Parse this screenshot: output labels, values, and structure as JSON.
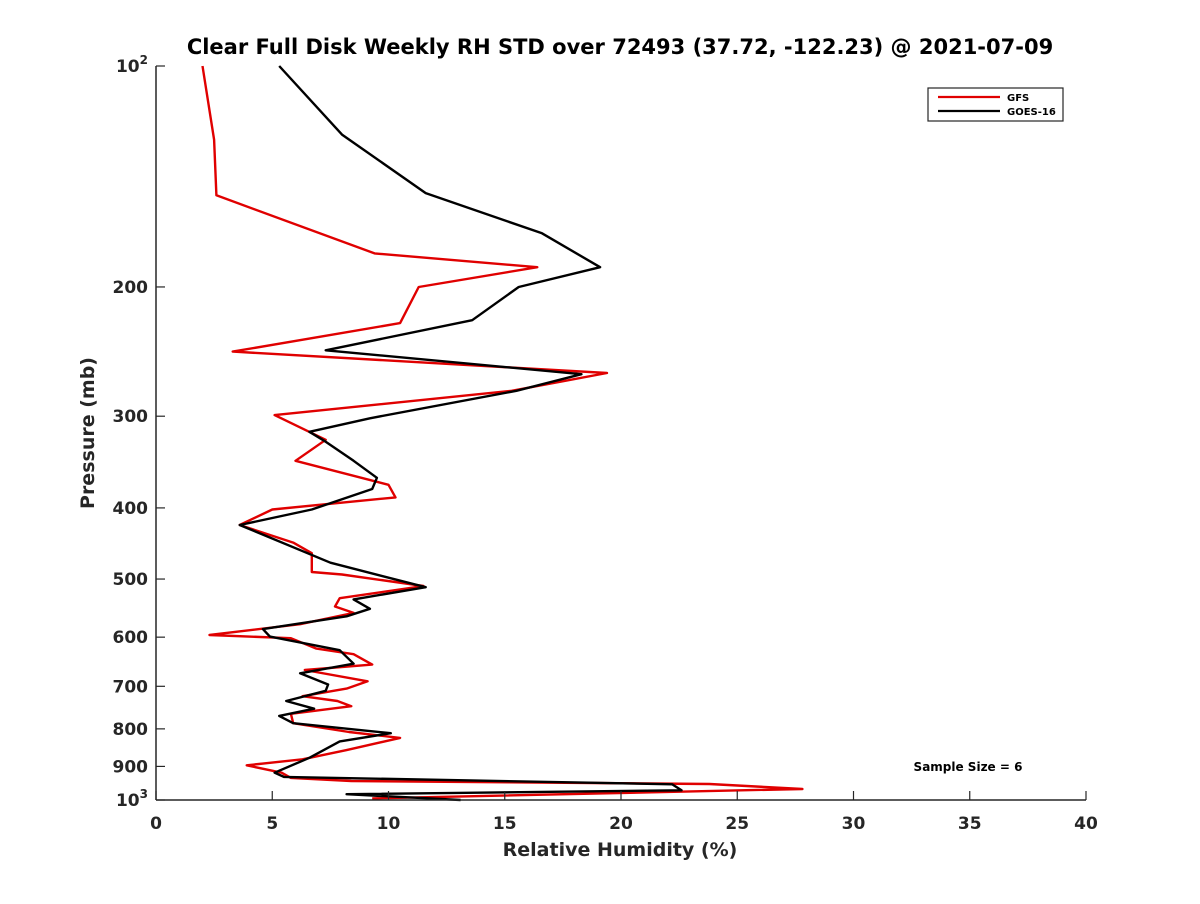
{
  "chart_data": {
    "type": "line",
    "title": "Clear Full Disk Weekly RH STD over 72493 (37.72, -122.23) @ 2021-07-09",
    "xlabel": "Relative Humidity (%)",
    "ylabel": "Pressure (mb)",
    "xlim": [
      0,
      40
    ],
    "ylim": [
      100,
      1000
    ],
    "y_scale": "log",
    "y_reversed": true,
    "grid": false,
    "legend_position": "top-right",
    "x_ticks": [
      0,
      5,
      10,
      15,
      20,
      25,
      30,
      35,
      40
    ],
    "x_tick_labels": [
      "0",
      "5",
      "10",
      "15",
      "20",
      "25",
      "30",
      "35",
      "40"
    ],
    "y_ticks": [
      100,
      200,
      300,
      400,
      500,
      600,
      700,
      800,
      900,
      1000
    ],
    "y_tick_labels": [
      {
        "base": "10",
        "exp": "2"
      },
      {
        "base": "200",
        "exp": ""
      },
      {
        "base": "300",
        "exp": ""
      },
      {
        "base": "400",
        "exp": ""
      },
      {
        "base": "500",
        "exp": ""
      },
      {
        "base": "600",
        "exp": ""
      },
      {
        "base": "700",
        "exp": ""
      },
      {
        "base": "800",
        "exp": ""
      },
      {
        "base": "900",
        "exp": ""
      },
      {
        "base": "10",
        "exp": "3"
      }
    ],
    "annotation": "Sample Size = 6",
    "series": [
      {
        "name": "GFS",
        "color": "#e00000",
        "points": [
          [
            2.0,
            100
          ],
          [
            2.5,
            126
          ],
          [
            2.6,
            150
          ],
          [
            9.4,
            180
          ],
          [
            16.4,
            188
          ],
          [
            11.3,
            200
          ],
          [
            10.5,
            224
          ],
          [
            3.3,
            245
          ],
          [
            19.4,
            262
          ],
          [
            15.3,
            277
          ],
          [
            5.1,
            299
          ],
          [
            7.3,
            323
          ],
          [
            6.0,
            345
          ],
          [
            10.0,
            372
          ],
          [
            10.3,
            387
          ],
          [
            5.0,
            402
          ],
          [
            3.6,
            422
          ],
          [
            5.9,
            446
          ],
          [
            6.7,
            461
          ],
          [
            6.7,
            489
          ],
          [
            8.0,
            493
          ],
          [
            11.5,
            511
          ],
          [
            7.9,
            531
          ],
          [
            7.7,
            545
          ],
          [
            8.5,
            556
          ],
          [
            6.2,
            576
          ],
          [
            2.3,
            596
          ],
          [
            5.8,
            602
          ],
          [
            6.9,
            622
          ],
          [
            8.5,
            633
          ],
          [
            9.3,
            654
          ],
          [
            6.4,
            665
          ],
          [
            9.1,
            689
          ],
          [
            8.2,
            705
          ],
          [
            6.3,
            722
          ],
          [
            7.8,
            733
          ],
          [
            8.4,
            745
          ],
          [
            5.8,
            763
          ],
          [
            5.9,
            786
          ],
          [
            8.3,
            808
          ],
          [
            10.5,
            823
          ],
          [
            8.2,
            855
          ],
          [
            6.3,
            880
          ],
          [
            3.9,
            897
          ],
          [
            5.4,
            918
          ],
          [
            5.8,
            933
          ],
          [
            8.4,
            942
          ],
          [
            23.8,
            951
          ],
          [
            27.8,
            966
          ],
          [
            9.3,
            995
          ]
        ]
      },
      {
        "name": "GOES-16",
        "color": "#000000",
        "points": [
          [
            5.3,
            100
          ],
          [
            8.0,
            124
          ],
          [
            11.6,
            149
          ],
          [
            16.6,
            169
          ],
          [
            19.1,
            188
          ],
          [
            15.6,
            200
          ],
          [
            13.6,
            222
          ],
          [
            7.3,
            244
          ],
          [
            18.3,
            263
          ],
          [
            15.5,
            277
          ],
          [
            9.2,
            302
          ],
          [
            6.6,
            315
          ],
          [
            7.3,
            325
          ],
          [
            8.5,
            345
          ],
          [
            9.5,
            364
          ],
          [
            9.3,
            377
          ],
          [
            6.7,
            402
          ],
          [
            3.6,
            422
          ],
          [
            7.5,
            475
          ],
          [
            11.6,
            513
          ],
          [
            8.5,
            533
          ],
          [
            9.2,
            549
          ],
          [
            8.2,
            562
          ],
          [
            4.6,
            585
          ],
          [
            4.9,
            599
          ],
          [
            7.9,
            625
          ],
          [
            8.5,
            652
          ],
          [
            6.2,
            672
          ],
          [
            7.4,
            696
          ],
          [
            7.3,
            710
          ],
          [
            5.6,
            733
          ],
          [
            6.8,
            751
          ],
          [
            5.3,
            768
          ],
          [
            5.9,
            786
          ],
          [
            10.1,
            811
          ],
          [
            7.9,
            832
          ],
          [
            6.6,
            876
          ],
          [
            5.1,
            918
          ],
          [
            5.5,
            930
          ],
          [
            22.2,
            952
          ],
          [
            22.6,
            970
          ],
          [
            8.2,
            982
          ],
          [
            13.1,
            1000
          ]
        ]
      }
    ]
  }
}
